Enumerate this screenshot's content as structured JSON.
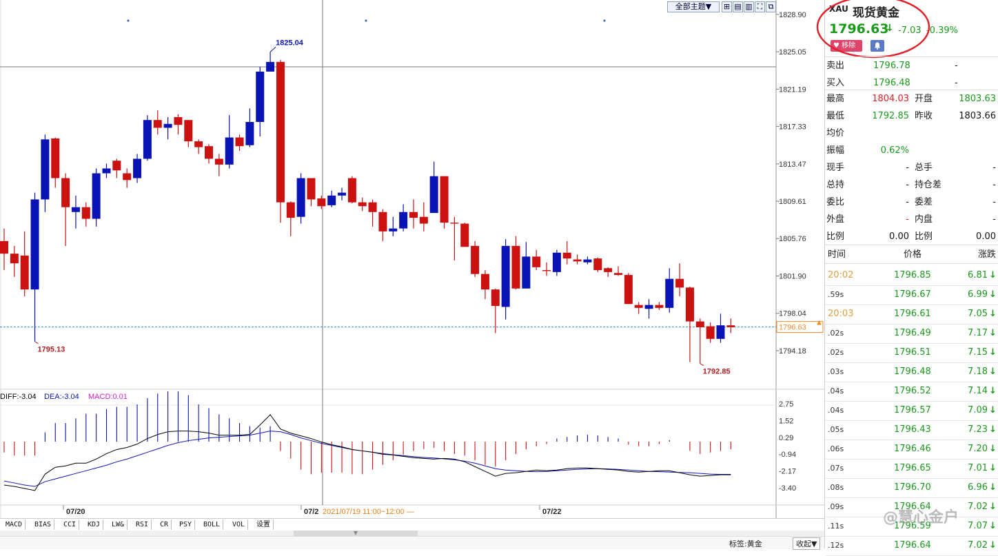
{
  "toolbar": {
    "theme_label": "全部主题▼"
  },
  "price_axis": {
    "labels": [
      "1828.90",
      "1825.05",
      "1821.19",
      "1817.33",
      "1813.47",
      "1809.61",
      "1805.76",
      "1801.90",
      "1798.04",
      "1794.18"
    ],
    "current_price_tag": "1796.63",
    "high_marker": "1825.04",
    "low_marker_left": "1795.13",
    "low_marker_right": "1792.85"
  },
  "macd": {
    "diff_label": "DIFF:-3.04",
    "dea_label": "DEA:-3.04",
    "macd_label": "MACD:0.01",
    "axis_labels": [
      "2.75",
      "1.52",
      "0.29",
      "-0.94",
      "-2.17",
      "-3.40"
    ]
  },
  "time_axis": {
    "labels": [
      "07/20",
      "07/2",
      "07/22"
    ],
    "cursor_time": "2021/07/19 11:00~12:00 —"
  },
  "indicator_tabs": [
    "MACD",
    "BIAS",
    "CCI",
    "KDJ",
    "LW&",
    "RSI",
    "CR",
    "PSY",
    "BOLL",
    "VOL",
    "设置"
  ],
  "status_bar": {
    "tag_label": "标签:黄金",
    "collapse_label": "收起▼"
  },
  "colors": {
    "up": "#cc1111",
    "down": "#0a14b4",
    "accent_green": "#1a9a1a",
    "accent_red": "#e02020",
    "annotation": "#e0202a"
  },
  "quote": {
    "code": "XAU",
    "name": "现货黄金",
    "price": "1796.63",
    "arrow": "↓",
    "change": "-7.03",
    "change_pct": "-0.39%",
    "remove_btn": "移除",
    "bell_icon": "bell-icon"
  },
  "bidask": [
    {
      "label": "卖出",
      "value": "1796.78",
      "extra": "-"
    },
    {
      "label": "买入",
      "value": "1796.48",
      "extra": "-"
    }
  ],
  "stats": [
    {
      "l1": "最高",
      "v1": "1804.03",
      "c1": "red",
      "l2": "开盘",
      "v2": "1803.63",
      "c2": "green"
    },
    {
      "l1": "最低",
      "v1": "1792.85",
      "c1": "green",
      "l2": "昨收",
      "v2": "1803.66",
      "c2": "black"
    },
    {
      "l1": "均价",
      "v1": "",
      "c1": "black",
      "l2": "",
      "v2": "",
      "c2": "black"
    },
    {
      "l1": "振幅",
      "v1": "0.62%",
      "c1": "green",
      "l2": "",
      "v2": "",
      "c2": "black"
    },
    {
      "l1": "现手",
      "v1": "-",
      "c1": "black",
      "l2": "总手",
      "v2": "-",
      "c2": "black"
    },
    {
      "l1": "总持",
      "v1": "-",
      "c1": "black",
      "l2": "持仓差",
      "v2": "-",
      "c2": "black"
    },
    {
      "l1": "委比",
      "v1": "-",
      "c1": "black",
      "l2": "委差",
      "v2": "-",
      "c2": "black"
    },
    {
      "l1": "外盘",
      "v1": "-",
      "c1": "red",
      "l2": "内盘",
      "v2": "-",
      "c2": "black"
    },
    {
      "l1": "比例",
      "v1": "0.00",
      "c1": "black",
      "l2": "比例",
      "v2": "0.00",
      "c2": "black"
    }
  ],
  "ticks_header": {
    "time": "时间",
    "price": "价格",
    "change": "涨跌"
  },
  "ticks": [
    {
      "time": "20:02",
      "price": "1796.85",
      "chg": "6.81",
      "hl": true
    },
    {
      "time": ".59s",
      "price": "1796.67",
      "chg": "6.99",
      "hl": false
    },
    {
      "time": "20:03",
      "price": "1796.61",
      "chg": "7.05",
      "hl": true
    },
    {
      "time": ".02s",
      "price": "1796.49",
      "chg": "7.17",
      "hl": false
    },
    {
      "time": ".02s",
      "price": "1796.51",
      "chg": "7.15",
      "hl": false
    },
    {
      "time": ".03s",
      "price": "1796.48",
      "chg": "7.18",
      "hl": false
    },
    {
      "time": ".04s",
      "price": "1796.52",
      "chg": "7.14",
      "hl": false
    },
    {
      "time": ".04s",
      "price": "1796.57",
      "chg": "7.09",
      "hl": false
    },
    {
      "time": ".05s",
      "price": "1796.43",
      "chg": "7.23",
      "hl": false
    },
    {
      "time": ".06s",
      "price": "1796.46",
      "chg": "7.20",
      "hl": false
    },
    {
      "time": ".07s",
      "price": "1796.65",
      "chg": "7.01",
      "hl": false
    },
    {
      "time": ".08s",
      "price": "1796.70",
      "chg": "6.96",
      "hl": false
    },
    {
      "time": ".09s",
      "price": "1796.64",
      "chg": "7.02",
      "hl": false
    },
    {
      "time": ".11s",
      "price": "1796.59",
      "chg": "7.07",
      "hl": false
    },
    {
      "time": ".12s",
      "price": "1796.64",
      "chg": "7.02",
      "hl": false
    }
  ],
  "watermark": "@慧心金户",
  "candles": [
    [
      1805.5,
      1804.2,
      1806.8,
      1802.5
    ],
    [
      1804.2,
      1803.2,
      1805.0,
      1801.8
    ],
    [
      1804.0,
      1800.5,
      1806.5,
      1799.8
    ],
    [
      1800.5,
      1809.8,
      1810.5,
      1795.13
    ],
    [
      1809.8,
      1816.0,
      1816.5,
      1808.5
    ],
    [
      1816.1,
      1812.0,
      1816.2,
      1811.0
    ],
    [
      1812.0,
      1809.0,
      1812.5,
      1805.0
    ],
    [
      1808.5,
      1809.0,
      1810.2,
      1806.8
    ],
    [
      1809.0,
      1807.8,
      1809.5,
      1807.0
    ],
    [
      1807.8,
      1812.5,
      1813.0,
      1807.0
    ],
    [
      1812.5,
      1813.0,
      1813.5,
      1812.0
    ],
    [
      1813.8,
      1812.8,
      1814.0,
      1812.0
    ],
    [
      1812.5,
      1811.8,
      1813.0,
      1811.0
    ],
    [
      1812.0,
      1814.0,
      1814.5,
      1811.5
    ],
    [
      1814.0,
      1818.0,
      1818.5,
      1813.8
    ],
    [
      1818.0,
      1817.2,
      1819.0,
      1816.5
    ],
    [
      1817.2,
      1817.6,
      1818.3,
      1816.0
    ],
    [
      1818.3,
      1817.5,
      1818.6,
      1816.5
    ],
    [
      1818.0,
      1815.8,
      1818.0,
      1815.2
    ],
    [
      1815.8,
      1815.2,
      1816.0,
      1814.5
    ],
    [
      1815.3,
      1814.0,
      1815.5,
      1813.5
    ],
    [
      1814.0,
      1813.4,
      1814.5,
      1812.2
    ],
    [
      1813.4,
      1816.2,
      1818.5,
      1813.0
    ],
    [
      1816.2,
      1815.3,
      1816.5,
      1814.8
    ],
    [
      1815.4,
      1817.8,
      1819.2,
      1815.2
    ],
    [
      1817.8,
      1823.0,
      1823.5,
      1816.3
    ],
    [
      1823.0,
      1824.0,
      1825.04,
      1823.0
    ],
    [
      1824.0,
      1809.5,
      1824.2,
      1807.4
    ],
    [
      1809.5,
      1807.9,
      1809.6,
      1806.0
    ],
    [
      1808.0,
      1812.0,
      1812.5,
      1807.3
    ],
    [
      1812.0,
      1809.8,
      1812.0,
      1809.1
    ],
    [
      1809.9,
      1809.1,
      1810.2,
      1808.8
    ],
    [
      1809.2,
      1810.2,
      1810.7,
      1809.0
    ],
    [
      1810.2,
      1810.5,
      1811.0,
      1809.7
    ],
    [
      1812.0,
      1809.5,
      1812.2,
      1809.4
    ],
    [
      1809.5,
      1809.1,
      1810.0,
      1808.6
    ],
    [
      1809.5,
      1808.5,
      1809.8,
      1807.0
    ],
    [
      1808.5,
      1806.5,
      1808.8,
      1805.5
    ],
    [
      1806.5,
      1806.8,
      1808.0,
      1806.0
    ],
    [
      1806.8,
      1808.5,
      1809.3,
      1806.5
    ],
    [
      1808.5,
      1807.9,
      1809.8,
      1806.8
    ],
    [
      1808.0,
      1807.3,
      1809.5,
      1806.5
    ],
    [
      1808.4,
      1812.2,
      1813.7,
      1808.4
    ],
    [
      1812.2,
      1807.4,
      1812.2,
      1806.8
    ],
    [
      1807.4,
      1807.3,
      1808.0,
      1803.5
    ],
    [
      1807.3,
      1804.9,
      1807.4,
      1805.0
    ],
    [
      1805.0,
      1802.1,
      1805.5,
      1801.8
    ],
    [
      1802.1,
      1800.5,
      1802.5,
      1799.5
    ],
    [
      1800.5,
      1798.8,
      1800.6,
      1796.0
    ],
    [
      1798.7,
      1805.0,
      1805.7,
      1797.4
    ],
    [
      1805.0,
      1800.6,
      1806.0,
      1800.5
    ],
    [
      1800.6,
      1803.9,
      1805.4,
      1800.6
    ],
    [
      1803.9,
      1802.8,
      1804.6,
      1802.5
    ],
    [
      1802.5,
      1802.4,
      1803.3,
      1801.9
    ],
    [
      1802.3,
      1804.3,
      1804.6,
      1801.9
    ],
    [
      1804.3,
      1803.7,
      1805.5,
      1803.1
    ],
    [
      1803.6,
      1803.4,
      1804.1,
      1803.1
    ],
    [
      1803.3,
      1803.6,
      1803.9,
      1803.1
    ],
    [
      1803.7,
      1802.5,
      1803.8,
      1802.3
    ],
    [
      1802.7,
      1802.3,
      1802.8,
      1801.8
    ],
    [
      1802.2,
      1802.0,
      1802.9,
      1801.9
    ],
    [
      1802.0,
      1799.0,
      1802.2,
      1799.0
    ],
    [
      1798.9,
      1798.6,
      1799.2,
      1798.0
    ],
    [
      1798.5,
      1798.9,
      1799.5,
      1797.5
    ],
    [
      1798.9,
      1798.6,
      1799.2,
      1798.4
    ],
    [
      1798.6,
      1801.6,
      1802.7,
      1798.1
    ],
    [
      1801.6,
      1800.7,
      1803.2,
      1799.8
    ],
    [
      1800.7,
      1797.2,
      1800.8,
      1793.0
    ],
    [
      1797.2,
      1796.6,
      1797.5,
      1792.85
    ],
    [
      1796.7,
      1795.4,
      1797.1,
      1795.0
    ],
    [
      1795.4,
      1796.8,
      1798.0,
      1795.0
    ],
    [
      1796.8,
      1796.6,
      1797.5,
      1796.0
    ]
  ],
  "macd_hist": [
    -0.35,
    -0.45,
    -0.45,
    -0.45,
    0.3,
    0.6,
    0.6,
    0.75,
    0.9,
    0.9,
    1.05,
    1.12,
    1.12,
    1.2,
    1.4,
    1.55,
    1.62,
    1.62,
    1.5,
    1.2,
    1.08,
    0.88,
    0.75,
    0.6,
    0.5,
    0.45,
    0.5,
    -0.3,
    -0.55,
    -0.9,
    -1.05,
    -1.0,
    -1.0,
    -1.0,
    -1.05,
    -1.05,
    -0.9,
    -0.75,
    -0.6,
    -0.42,
    -0.3,
    -0.24,
    -0.2,
    -0.3,
    -0.4,
    -0.45,
    -0.6,
    -0.75,
    -0.8,
    -0.6,
    -0.4,
    -0.25,
    -0.15,
    -0.08,
    0.1,
    0.15,
    0.2,
    0.22,
    0.2,
    0.15,
    0.1,
    -0.1,
    -0.15,
    -0.15,
    -0.08,
    0.05,
    0.0,
    -0.3,
    -0.4,
    -0.35,
    -0.3,
    -0.25
  ],
  "macd_diff": [
    -3.2,
    -3.3,
    -3.45,
    -3.6,
    -2.4,
    -1.9,
    -1.8,
    -1.6,
    -1.6,
    -1.3,
    -0.9,
    -0.6,
    -0.45,
    -0.2,
    0.2,
    0.5,
    0.7,
    0.75,
    0.75,
    0.7,
    0.6,
    0.45,
    0.45,
    0.45,
    0.5,
    1.2,
    1.95,
    0.9,
    0.6,
    0.4,
    0.2,
    -0.05,
    -0.25,
    -0.4,
    -0.6,
    -0.7,
    -0.8,
    -0.95,
    -1.0,
    -1.1,
    -1.2,
    -1.25,
    -1.3,
    -1.25,
    -1.3,
    -1.5,
    -1.85,
    -2.2,
    -2.55,
    -2.35,
    -2.3,
    -2.2,
    -2.1,
    -2.15,
    -2.1,
    -2.0,
    -1.95,
    -1.95,
    -2.0,
    -2.05,
    -2.1,
    -2.2,
    -2.25,
    -2.2,
    -2.15,
    -2.15,
    -2.3,
    -2.45,
    -2.55,
    -2.5,
    -2.45,
    -2.45
  ],
  "macd_dea": [
    -2.9,
    -3.05,
    -3.2,
    -3.3,
    -2.95,
    -2.75,
    -2.55,
    -2.35,
    -2.15,
    -1.95,
    -1.75,
    -1.5,
    -1.3,
    -1.05,
    -0.8,
    -0.55,
    -0.3,
    -0.1,
    0.05,
    0.15,
    0.25,
    0.3,
    0.35,
    0.4,
    0.45,
    0.6,
    0.75,
    0.7,
    0.5,
    0.25,
    0.05,
    -0.15,
    -0.3,
    -0.45,
    -0.6,
    -0.7,
    -0.8,
    -0.9,
    -0.98,
    -1.05,
    -1.12,
    -1.18,
    -1.22,
    -1.28,
    -1.35,
    -1.45,
    -1.6,
    -1.8,
    -2.0,
    -2.1,
    -2.15,
    -2.2,
    -2.22,
    -2.2,
    -2.15,
    -2.1,
    -2.05,
    -2.02,
    -2.0,
    -2.02,
    -2.05,
    -2.1,
    -2.15,
    -2.2,
    -2.22,
    -2.25,
    -2.28,
    -2.3,
    -2.35,
    -2.4,
    -2.42,
    -2.42
  ]
}
